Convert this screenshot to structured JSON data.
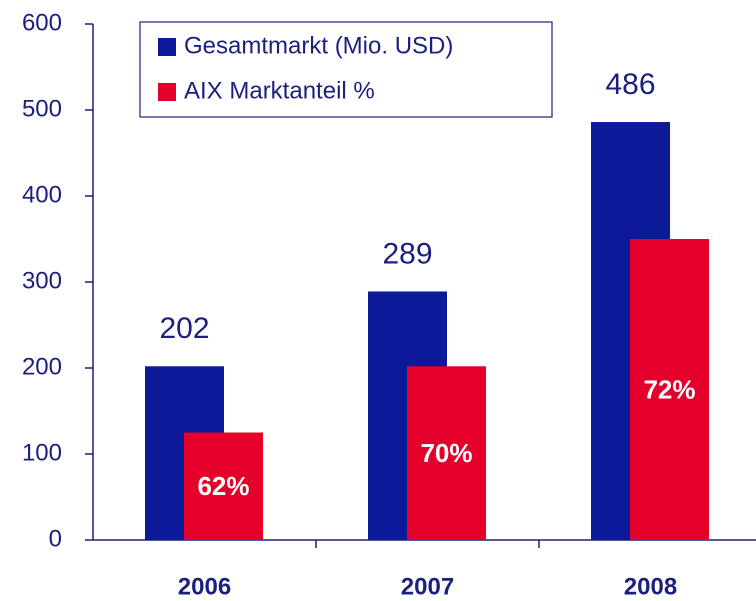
{
  "chart_data": {
    "type": "bar",
    "categories": [
      "2006",
      "2007",
      "2008"
    ],
    "series": [
      {
        "name": "Gesamtmarkt (Mio. USD)",
        "color": "#0c1a99",
        "values": [
          202,
          289,
          486
        ]
      },
      {
        "name": "AIX Marktanteil %",
        "color": "#e4002b",
        "values": [
          125,
          202,
          350
        ],
        "share_labels": [
          "62%",
          "70%",
          "72%"
        ]
      }
    ],
    "ylim": [
      0,
      600
    ],
    "yticks": [
      0,
      100,
      200,
      300,
      400,
      500,
      600
    ],
    "legend": "top-left"
  }
}
